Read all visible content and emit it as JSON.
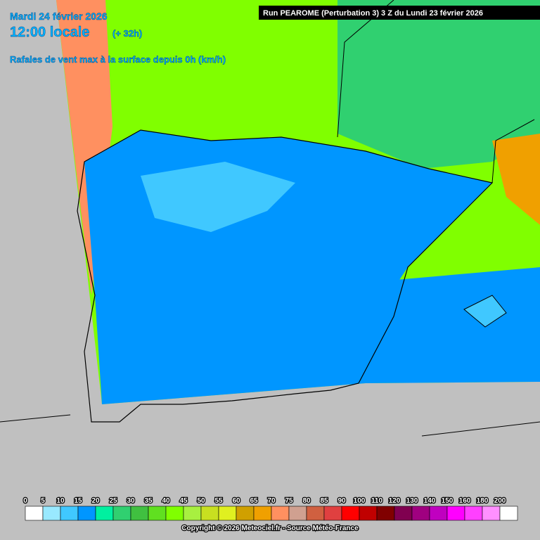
{
  "header": {
    "date": "Mardi 24 février 2026",
    "time": "12:00 locale",
    "offset": "(+ 32h)",
    "parameter": "Rafales de vent max à la surface depuis 0h (km/h)",
    "run": "Run PEAROME (Perturbation 3) 3 Z du Lundi 23 février 2026"
  },
  "legend": {
    "ticks": [
      0,
      5,
      10,
      15,
      20,
      25,
      30,
      35,
      40,
      45,
      50,
      55,
      60,
      65,
      70,
      75,
      80,
      85,
      90,
      100,
      110,
      120,
      130,
      140,
      150,
      160,
      180,
      200
    ],
    "colors": [
      "#ffffff",
      "#99e9ff",
      "#40c8ff",
      "#0096ff",
      "#00f0a0",
      "#30d070",
      "#40c040",
      "#60e020",
      "#80ff00",
      "#a8f040",
      "#c8e020",
      "#e0f020",
      "#d0a000",
      "#f0a000",
      "#ff9060",
      "#d0a090",
      "#d06040",
      "#e04040",
      "#ff0000",
      "#c00000",
      "#800000",
      "#800050",
      "#a00080",
      "#c000c0",
      "#ff00ff",
      "#ff40ff",
      "#ff90ff",
      "#ffffff"
    ]
  },
  "footer": {
    "copyright": "Copyright © 2026 Meteociel.fr - Source Météo-France"
  }
}
